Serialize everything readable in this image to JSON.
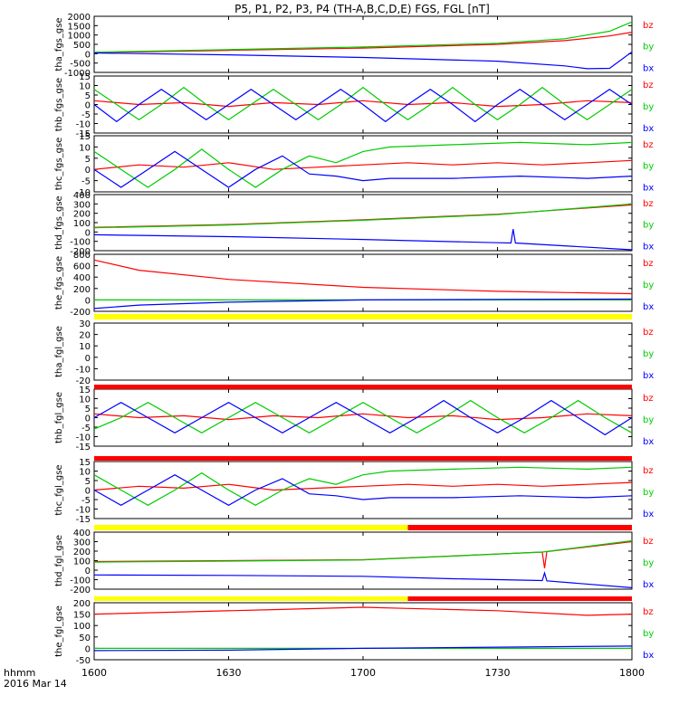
{
  "title": "P5, P1, P2, P3, P4 (TH-A,B,C,D,E) FGS, FGL [nT]",
  "colors": {
    "bx": "#0000ff",
    "by": "#00cc00",
    "bz": "#ff0000",
    "quality_yellow": "#ffff00",
    "quality_red": "#ff0000",
    "frame": "#000000"
  },
  "x_axis": {
    "label_line1": "hhmm",
    "label_line2": "2016 Mar 14",
    "ticks": [
      "1600",
      "1630",
      "1700",
      "1730",
      "1800"
    ]
  },
  "chart_data": [
    {
      "type": "line",
      "ylabel": "tha_fgs_gse",
      "ylim": [
        -1000,
        2000
      ],
      "yticks": [
        "-1000",
        "-500",
        "0",
        "500",
        "1000",
        "1500",
        "2000"
      ],
      "xlim": [
        0,
        120
      ],
      "legend": [
        "bz",
        "by",
        "bx"
      ],
      "series": [
        {
          "name": "bz",
          "x": [
            0,
            30,
            60,
            90,
            105,
            115,
            120
          ],
          "values": [
            60,
            180,
            300,
            500,
            700,
            950,
            1150
          ]
        },
        {
          "name": "by",
          "x": [
            0,
            30,
            60,
            90,
            105,
            115,
            120
          ],
          "values": [
            80,
            220,
            360,
            560,
            800,
            1200,
            1700
          ]
        },
        {
          "name": "bx",
          "x": [
            0,
            30,
            60,
            90,
            105,
            110,
            115,
            120
          ],
          "values": [
            40,
            -60,
            -200,
            -400,
            -650,
            -800,
            -780,
            100
          ]
        }
      ]
    },
    {
      "type": "line",
      "ylabel": "thb_fgs_gse",
      "ylim": [
        -15,
        15
      ],
      "yticks": [
        "-15",
        "-10",
        "-5",
        "0",
        "5",
        "10",
        "15"
      ],
      "xlim": [
        0,
        120
      ],
      "legend": [
        "bz",
        "by",
        "bx"
      ],
      "series": [
        {
          "name": "bz",
          "x": [
            0,
            10,
            20,
            30,
            40,
            50,
            60,
            70,
            80,
            90,
            100,
            110,
            120
          ],
          "values": [
            2,
            0,
            1,
            -1,
            1,
            0,
            2,
            0,
            1,
            -1,
            0,
            2,
            1
          ]
        },
        {
          "name": "by",
          "x": [
            0,
            5,
            10,
            15,
            20,
            25,
            30,
            35,
            40,
            45,
            50,
            55,
            60,
            65,
            70,
            75,
            80,
            85,
            90,
            95,
            100,
            105,
            110,
            115,
            120
          ],
          "values": [
            8,
            0,
            -8,
            0,
            9,
            0,
            -8,
            0,
            8,
            0,
            -8,
            0,
            9,
            0,
            -8,
            0,
            9,
            0,
            -8,
            0,
            9,
            0,
            -8,
            0,
            8
          ]
        },
        {
          "name": "bx",
          "x": [
            0,
            5,
            10,
            15,
            20,
            25,
            30,
            35,
            40,
            45,
            50,
            55,
            60,
            65,
            70,
            75,
            80,
            85,
            90,
            95,
            100,
            105,
            110,
            115,
            120
          ],
          "values": [
            0,
            -9,
            0,
            8,
            0,
            -8,
            0,
            8,
            0,
            -8,
            0,
            8,
            0,
            -9,
            0,
            8,
            0,
            -9,
            0,
            8,
            0,
            -8,
            0,
            8,
            0
          ]
        }
      ]
    },
    {
      "type": "line",
      "ylabel": "thc_fgs_gse",
      "ylim": [
        -10,
        15
      ],
      "yticks": [
        "-10",
        "-5",
        "0",
        "5",
        "10",
        "15"
      ],
      "xlim": [
        0,
        120
      ],
      "legend": [
        "bz",
        "by",
        "bx"
      ],
      "series": [
        {
          "name": "bz",
          "x": [
            0,
            10,
            20,
            30,
            40,
            50,
            60,
            70,
            80,
            90,
            100,
            110,
            120
          ],
          "values": [
            0,
            2,
            1,
            3,
            0,
            1,
            2,
            3,
            2,
            3,
            2,
            3,
            4
          ]
        },
        {
          "name": "by",
          "x": [
            0,
            6,
            12,
            18,
            24,
            30,
            36,
            42,
            48,
            54,
            60,
            66,
            80,
            95,
            110,
            120
          ],
          "values": [
            8,
            0,
            -8,
            0,
            9,
            0,
            -8,
            0,
            6,
            3,
            8,
            10,
            11,
            12,
            11,
            12
          ]
        },
        {
          "name": "bx",
          "x": [
            0,
            6,
            12,
            18,
            24,
            30,
            36,
            42,
            48,
            54,
            60,
            66,
            80,
            95,
            110,
            120
          ],
          "values": [
            0,
            -8,
            0,
            8,
            0,
            -8,
            0,
            6,
            -2,
            -3,
            -5,
            -4,
            -4,
            -3,
            -4,
            -3
          ]
        }
      ]
    },
    {
      "type": "line",
      "ylabel": "thd_fgs_gse",
      "ylim": [
        -200,
        400
      ],
      "yticks": [
        "-200",
        "-100",
        "0",
        "100",
        "200",
        "300",
        "400"
      ],
      "xlim": [
        0,
        120
      ],
      "legend": [
        "bz",
        "by",
        "bx"
      ],
      "series": [
        {
          "name": "bz",
          "x": [
            0,
            30,
            60,
            90,
            120
          ],
          "values": [
            50,
            80,
            130,
            190,
            290
          ]
        },
        {
          "name": "by",
          "x": [
            0,
            30,
            60,
            90,
            120
          ],
          "values": [
            45,
            75,
            125,
            185,
            300
          ]
        },
        {
          "name": "bx",
          "x": [
            0,
            30,
            60,
            90,
            93,
            93.5,
            94,
            120
          ],
          "values": [
            -30,
            -50,
            -80,
            -115,
            -118,
            30,
            -118,
            -190
          ]
        }
      ]
    },
    {
      "type": "line",
      "ylabel": "the_fgs_gse",
      "ylim": [
        -200,
        800
      ],
      "yticks": [
        "-200",
        "0",
        "200",
        "400",
        "600",
        "800"
      ],
      "xlim": [
        0,
        120
      ],
      "legend": [
        "bz",
        "by",
        "bx"
      ],
      "series": [
        {
          "name": "bz",
          "x": [
            0,
            10,
            30,
            60,
            90,
            120
          ],
          "values": [
            700,
            520,
            360,
            220,
            150,
            110
          ]
        },
        {
          "name": "by",
          "x": [
            0,
            120
          ],
          "values": [
            0,
            0
          ]
        },
        {
          "name": "bx",
          "x": [
            0,
            10,
            30,
            60,
            90,
            120
          ],
          "values": [
            -150,
            -90,
            -40,
            0,
            10,
            15
          ]
        }
      ]
    },
    {
      "type": "line",
      "ylabel": "tha_fgl_gse",
      "ylim": [
        -20,
        30
      ],
      "yticks": [
        "-20",
        "-10",
        "0",
        "10",
        "20",
        "30"
      ],
      "xlim": [
        0,
        120
      ],
      "legend": [
        "bz",
        "by",
        "bx"
      ],
      "series": []
    },
    {
      "type": "line",
      "ylabel": "thb_fgl_gse",
      "ylim": [
        -15,
        15
      ],
      "yticks": [
        "-15",
        "-10",
        "-5",
        "0",
        "5",
        "10",
        "15"
      ],
      "xlim": [
        0,
        120
      ],
      "legend": [
        "bz",
        "by",
        "bx"
      ],
      "series": [
        {
          "name": "bz",
          "x": [
            0,
            10,
            20,
            30,
            40,
            50,
            60,
            70,
            80,
            90,
            100,
            110,
            120
          ],
          "values": [
            2,
            0,
            1,
            -1,
            1,
            0,
            2,
            0,
            1,
            -1,
            0,
            2,
            1
          ]
        },
        {
          "name": "by",
          "x": [
            0,
            6,
            12,
            18,
            24,
            30,
            36,
            42,
            48,
            54,
            60,
            66,
            72,
            78,
            84,
            90,
            96,
            102,
            108,
            114,
            120
          ],
          "values": [
            -6,
            0,
            8,
            0,
            -8,
            0,
            8,
            0,
            -8,
            0,
            8,
            0,
            -8,
            0,
            9,
            0,
            -8,
            0,
            9,
            0,
            -8
          ]
        },
        {
          "name": "bx",
          "x": [
            0,
            6,
            12,
            18,
            24,
            30,
            36,
            42,
            48,
            54,
            60,
            66,
            72,
            78,
            84,
            90,
            96,
            102,
            108,
            114,
            120
          ],
          "values": [
            0,
            8,
            0,
            -8,
            0,
            8,
            0,
            -8,
            0,
            8,
            0,
            -8,
            0,
            9,
            0,
            -8,
            0,
            9,
            0,
            -9,
            0
          ]
        }
      ]
    },
    {
      "type": "line",
      "ylabel": "thc_fgl_gse",
      "ylim": [
        -15,
        15
      ],
      "yticks": [
        "-15",
        "-10",
        "-5",
        "0",
        "5",
        "10",
        "15"
      ],
      "xlim": [
        0,
        120
      ],
      "legend": [
        "bz",
        "by",
        "bx"
      ],
      "series": [
        {
          "name": "bz",
          "x": [
            0,
            10,
            20,
            30,
            40,
            50,
            60,
            70,
            80,
            90,
            100,
            110,
            120
          ],
          "values": [
            0,
            2,
            1,
            3,
            0,
            1,
            2,
            3,
            2,
            3,
            2,
            3,
            4
          ]
        },
        {
          "name": "by",
          "x": [
            0,
            6,
            12,
            18,
            24,
            30,
            36,
            42,
            48,
            54,
            60,
            66,
            80,
            95,
            110,
            120
          ],
          "values": [
            8,
            0,
            -8,
            0,
            9,
            0,
            -8,
            0,
            6,
            3,
            8,
            10,
            11,
            12,
            11,
            12
          ]
        },
        {
          "name": "bx",
          "x": [
            0,
            6,
            12,
            18,
            24,
            30,
            36,
            42,
            48,
            54,
            60,
            66,
            80,
            95,
            110,
            120
          ],
          "values": [
            0,
            -8,
            0,
            8,
            0,
            -8,
            0,
            6,
            -2,
            -3,
            -5,
            -4,
            -4,
            -3,
            -4,
            -3
          ]
        }
      ]
    },
    {
      "type": "line",
      "ylabel": "thd_fgl_gse",
      "ylim": [
        -200,
        400
      ],
      "yticks": [
        "-200",
        "-100",
        "0",
        "100",
        "200",
        "300",
        "400"
      ],
      "xlim": [
        0,
        120
      ],
      "legend": [
        "bz",
        "by",
        "bx"
      ],
      "series": [
        {
          "name": "bz",
          "x": [
            0,
            30,
            60,
            80,
            100,
            100.5,
            101,
            120
          ],
          "values": [
            90,
            100,
            110,
            150,
            190,
            20,
            195,
            300
          ]
        },
        {
          "name": "by",
          "x": [
            0,
            30,
            60,
            80,
            100,
            120
          ],
          "values": [
            85,
            95,
            108,
            148,
            190,
            310
          ]
        },
        {
          "name": "bx",
          "x": [
            0,
            30,
            60,
            80,
            100,
            100.5,
            101,
            120
          ],
          "values": [
            -50,
            -55,
            -65,
            -90,
            -110,
            -30,
            -112,
            -185
          ]
        }
      ]
    },
    {
      "type": "line",
      "ylabel": "the_fgl_gse",
      "ylim": [
        -50,
        200
      ],
      "yticks": [
        "-50",
        "0",
        "50",
        "100",
        "150",
        "200"
      ],
      "xlim": [
        0,
        120
      ],
      "legend": [
        "bz",
        "by",
        "bx"
      ],
      "series": [
        {
          "name": "bz",
          "x": [
            0,
            20,
            40,
            60,
            70,
            90,
            110,
            120
          ],
          "values": [
            150,
            160,
            170,
            180,
            175,
            165,
            145,
            150
          ]
        },
        {
          "name": "by",
          "x": [
            0,
            120
          ],
          "values": [
            0,
            0
          ]
        },
        {
          "name": "bx",
          "x": [
            0,
            30,
            60,
            90,
            120
          ],
          "values": [
            -10,
            -8,
            0,
            5,
            10
          ]
        }
      ]
    }
  ],
  "quality_bars": [
    {
      "segments": [
        {
          "from": 0,
          "to": 120,
          "color": "#ffff00"
        }
      ]
    },
    {
      "segments": [
        {
          "from": 0,
          "to": 120,
          "color": "#ff0000"
        }
      ]
    },
    {
      "segments": [
        {
          "from": 0,
          "to": 120,
          "color": "#ff0000"
        }
      ]
    },
    {
      "segments": [
        {
          "from": 0,
          "to": 70,
          "color": "#ffff00"
        },
        {
          "from": 70,
          "to": 120,
          "color": "#ff0000"
        }
      ]
    },
    {
      "segments": [
        {
          "from": 0,
          "to": 70,
          "color": "#ffff00"
        },
        {
          "from": 70,
          "to": 120,
          "color": "#ff0000"
        }
      ]
    }
  ]
}
